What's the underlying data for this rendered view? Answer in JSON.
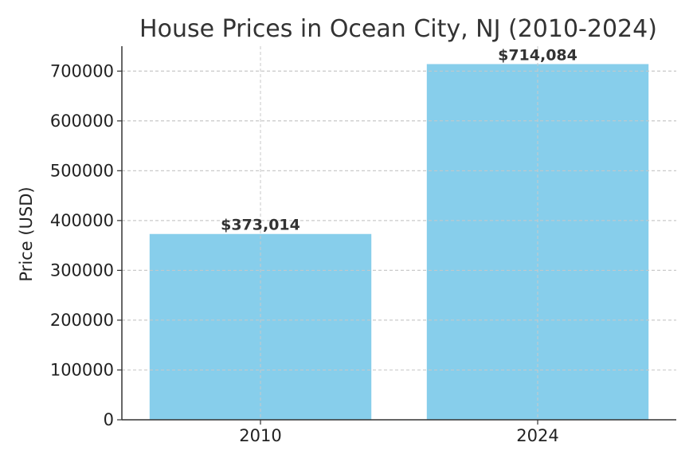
{
  "chart_data": {
    "type": "bar",
    "title": "House Prices in Ocean City, NJ (2010-2024)",
    "xlabel": "",
    "ylabel": "Price (USD)",
    "categories": [
      "2010",
      "2024"
    ],
    "values": [
      373014,
      714084
    ],
    "data_labels": [
      "$373,014",
      "$714,084"
    ],
    "ylim": [
      0,
      750000
    ],
    "yticks": [
      0,
      100000,
      200000,
      300000,
      400000,
      500000,
      600000,
      700000
    ],
    "ytick_labels": [
      "0",
      "100000",
      "200000",
      "300000",
      "400000",
      "500000",
      "600000",
      "700000"
    ],
    "grid": true,
    "bar_color": "#87ceeb"
  }
}
